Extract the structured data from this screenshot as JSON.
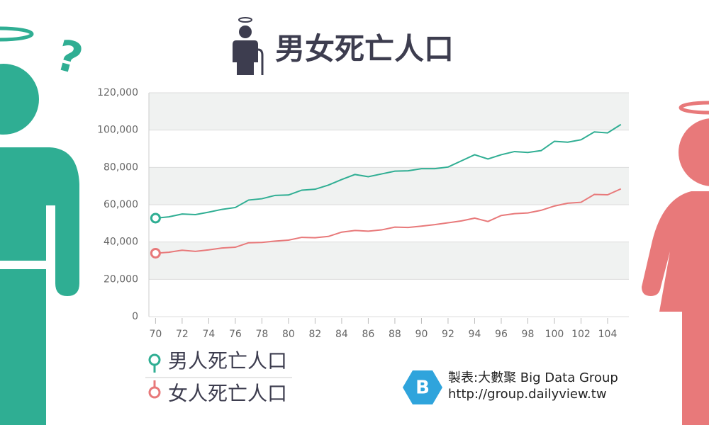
{
  "chart_data": {
    "type": "line",
    "title": "男女死亡人口",
    "x": [
      70,
      71,
      72,
      73,
      74,
      75,
      76,
      77,
      78,
      79,
      80,
      81,
      82,
      83,
      84,
      85,
      86,
      87,
      88,
      89,
      90,
      91,
      92,
      93,
      94,
      95,
      96,
      97,
      98,
      99,
      100,
      101,
      102,
      103,
      104,
      105
    ],
    "series": [
      {
        "name": "男人死亡人口",
        "color": "#2fae93",
        "values": [
          52800,
          53500,
          55000,
          54700,
          56000,
          57500,
          58500,
          62500,
          63200,
          65000,
          65200,
          67800,
          68300,
          70500,
          73500,
          76200,
          75000,
          76500,
          78000,
          78200,
          79300,
          79300,
          80200,
          83500,
          86800,
          84500,
          86800,
          88500,
          88000,
          89000,
          94000,
          93500,
          94800,
          99000,
          98500,
          103000
        ]
      },
      {
        "name": "女人死亡人口",
        "color": "#e8797a",
        "values": [
          34000,
          34500,
          35600,
          35000,
          35800,
          36800,
          37200,
          39600,
          39800,
          40500,
          41000,
          42500,
          42300,
          43000,
          45300,
          46200,
          45800,
          46500,
          48000,
          47800,
          48500,
          49300,
          50300,
          51300,
          52800,
          51000,
          54200,
          55200,
          55600,
          57000,
          59300,
          60800,
          61300,
          65500,
          65300,
          68500
        ]
      }
    ],
    "xlim": [
      69.5,
      105.6
    ],
    "xticks": [
      70,
      72,
      74,
      76,
      78,
      80,
      82,
      84,
      86,
      88,
      90,
      92,
      94,
      96,
      98,
      100,
      102,
      104
    ],
    "ylim": [
      0,
      120000
    ],
    "yticks": [
      0,
      {
        "value": 20000,
        "label": "20,000"
      },
      {
        "value": 40000,
        "label": "40,000"
      },
      {
        "value": 60000,
        "label": "60,000"
      },
      {
        "value": 80000,
        "label": "80,000"
      },
      {
        "value": 100000,
        "label": "100,000"
      },
      {
        "value": 120000,
        "label": "120,000"
      }
    ],
    "grid": true,
    "source": [
      "製表:大數聚 Big Data Group",
      "http://group.dailyview.tw"
    ]
  }
}
